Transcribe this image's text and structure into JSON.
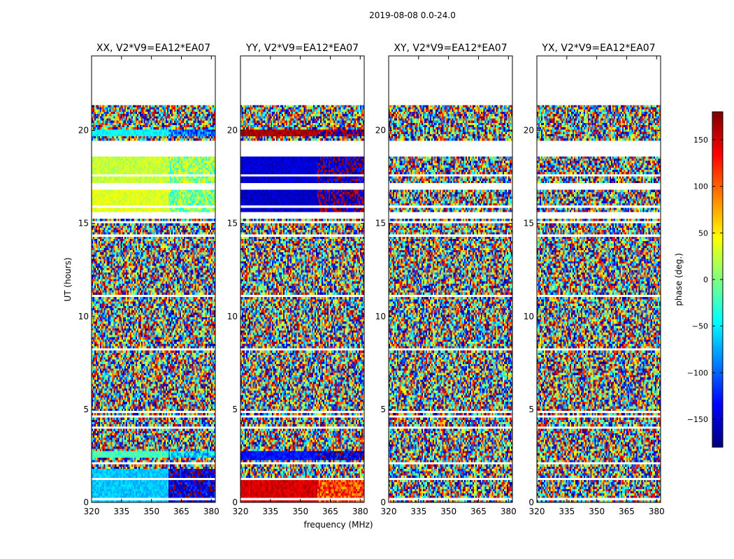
{
  "chart_data": {
    "type": "heatmap",
    "suptitle": "2019-08-08 0.0-24.0",
    "xlabel": "frequency (MHz)",
    "ylabel": "UT (hours)",
    "xlim": [
      320,
      382
    ],
    "ylim": [
      0,
      24
    ],
    "xticks": [
      320,
      335,
      350,
      365,
      380
    ],
    "yticks": [
      0,
      5,
      10,
      15,
      20
    ],
    "colormap": "jet",
    "colorbar": {
      "label": "phase (deg.)",
      "range": [
        -180,
        180
      ],
      "ticks": [
        150,
        100,
        50,
        0,
        -50,
        -100,
        -150
      ],
      "tick_labels": [
        "150",
        "100",
        "50",
        "0",
        "−50",
        "−100",
        "−150"
      ]
    },
    "panels": [
      {
        "title": "XX, V2*V9=EA12*EA07",
        "coherent": [
          {
            "t0": 0.0,
            "t1": 1.8,
            "phase_low": -65,
            "phase_high": -150
          },
          {
            "t0": 2.4,
            "t1": 2.7,
            "phase_low": -20,
            "phase_high": -60
          },
          {
            "t0": 15.6,
            "t1": 16.8,
            "phase_low": 35,
            "phase_high": 0
          },
          {
            "t0": 17.2,
            "t1": 18.6,
            "phase_low": 25,
            "phase_high": 10
          },
          {
            "t0": 19.7,
            "t1": 20.1,
            "phase_low": -45,
            "phase_high": -95
          }
        ]
      },
      {
        "title": "YY, V2*V9=EA12*EA07",
        "coherent": [
          {
            "t0": 0.0,
            "t1": 1.2,
            "phase_low": 150,
            "phase_high": 110
          },
          {
            "t0": 2.3,
            "t1": 2.7,
            "phase_low": -130,
            "phase_high": -150
          },
          {
            "t0": 15.6,
            "t1": 16.8,
            "phase_low": -155,
            "phase_high": -170
          },
          {
            "t0": 17.2,
            "t1": 18.6,
            "phase_low": -150,
            "phase_high": -160
          },
          {
            "t0": 19.7,
            "t1": 20.1,
            "phase_low": 165,
            "phase_high": 175
          }
        ]
      },
      {
        "title": "XY, V2*V9=EA12*EA07",
        "coherent": []
      },
      {
        "title": "YX, V2*V9=EA12*EA07",
        "coherent": []
      }
    ],
    "flagged_hours": [
      [
        0.15,
        0.2
      ],
      [
        0.55,
        0.6
      ],
      [
        1.25,
        1.3
      ],
      [
        1.65,
        1.7
      ],
      [
        2.0,
        2.15
      ],
      [
        3.35,
        3.4
      ],
      [
        4.0,
        4.05
      ],
      [
        4.6,
        4.65
      ],
      [
        4.85,
        4.9
      ],
      [
        5.6,
        5.65
      ],
      [
        7.55,
        7.6
      ],
      [
        8.2,
        8.25
      ],
      [
        8.6,
        8.65
      ],
      [
        9.1,
        9.15
      ],
      [
        11.05,
        11.15
      ],
      [
        12.55,
        12.6
      ],
      [
        13.2,
        13.25
      ],
      [
        14.3,
        14.35
      ],
      [
        15.05,
        15.1
      ],
      [
        15.25,
        15.6
      ],
      [
        15.9,
        15.95
      ],
      [
        16.8,
        17.2
      ],
      [
        17.55,
        17.6
      ],
      [
        18.1,
        18.15
      ],
      [
        18.6,
        19.5
      ],
      [
        21.4,
        24.0
      ]
    ],
    "grid": false
  }
}
